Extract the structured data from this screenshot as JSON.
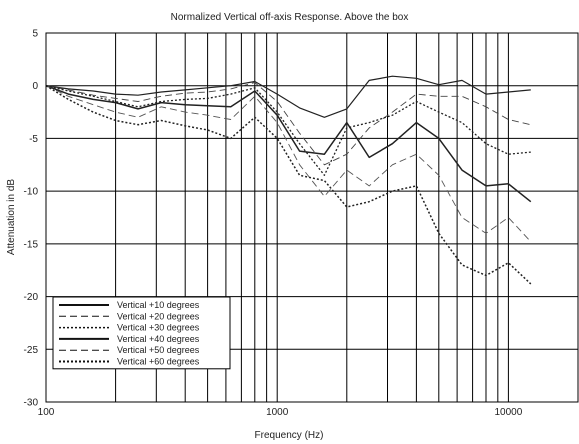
{
  "chart_data": {
    "type": "line",
    "title": "Normalized Vertical off-axis Response. Above the box",
    "xlabel": "Frequency (Hz)",
    "ylabel": "Attenuation in dB",
    "xscale": "log",
    "xlim": [
      100,
      20000
    ],
    "ylim": [
      -30,
      5
    ],
    "xticks": [
      100,
      1000,
      10000
    ],
    "xtick_labels": [
      "100",
      "1000",
      "10000"
    ],
    "yticks": [
      5,
      0,
      -5,
      -10,
      -15,
      -20,
      -25,
      -30
    ],
    "ytick_labels": [
      "5",
      "0",
      "-5",
      "-10",
      "-15",
      "-20",
      "-25",
      "-30"
    ],
    "grid": true,
    "legend_position": "bottom-left",
    "series": [
      {
        "name": "Vertical +10 degrees",
        "x": [
          100,
          125,
          160,
          200,
          250,
          315,
          400,
          500,
          630,
          800,
          1000,
          1250,
          1600,
          2000,
          2500,
          3150,
          4000,
          5000,
          6300,
          8000,
          10000,
          12500
        ],
        "y": [
          0,
          -0.3,
          -0.5,
          -0.8,
          -0.9,
          -0.6,
          -0.4,
          -0.2,
          0,
          0.4,
          -0.8,
          -2.1,
          -3,
          -2.2,
          0.5,
          0.9,
          0.7,
          0.1,
          0.5,
          -0.8,
          -0.6,
          -0.4
        ]
      },
      {
        "name": "Vertical +20 degrees",
        "x": [
          100,
          125,
          160,
          200,
          250,
          315,
          400,
          500,
          630,
          800,
          1000,
          1250,
          1600,
          2000,
          2500,
          3150,
          4000,
          5000,
          6300,
          8000,
          10000,
          12500
        ],
        "y": [
          0,
          -0.4,
          -0.9,
          -1.2,
          -1.5,
          -1.0,
          -0.7,
          -0.6,
          -0.3,
          0.3,
          -1.5,
          -4.5,
          -7.5,
          -6.5,
          -4,
          -2.5,
          -0.8,
          -1.0,
          -1.0,
          -2.0,
          -3.2,
          -3.7
        ]
      },
      {
        "name": "Vertical +30 degrees",
        "x": [
          100,
          125,
          160,
          200,
          250,
          315,
          400,
          500,
          630,
          800,
          1000,
          1250,
          1600,
          2000,
          2500,
          3150,
          4000,
          5000,
          6300,
          8000,
          10000,
          12500
        ],
        "y": [
          0,
          -0.5,
          -1.0,
          -1.5,
          -2.0,
          -1.5,
          -1.3,
          -1.2,
          -0.8,
          -0.2,
          -2.5,
          -5.5,
          -8.5,
          -4,
          -3.5,
          -2.8,
          -1.5,
          -2.5,
          -3.5,
          -5.5,
          -6.5,
          -6.3
        ]
      },
      {
        "name": "Vertical +40 degrees",
        "x": [
          100,
          125,
          160,
          200,
          250,
          315,
          400,
          500,
          630,
          800,
          1000,
          1250,
          1600,
          2000,
          2500,
          3150,
          4000,
          5000,
          6300,
          8000,
          10000,
          12500
        ],
        "y": [
          0,
          -0.8,
          -1.3,
          -1.6,
          -2.2,
          -1.6,
          -1.8,
          -1.9,
          -2.0,
          -0.5,
          -2.8,
          -6.2,
          -6.5,
          -3.5,
          -6.8,
          -5.5,
          -3.5,
          -5.0,
          -8.0,
          -9.5,
          -9.3,
          -11.0
        ]
      },
      {
        "name": "Vertical +50 degrees",
        "x": [
          100,
          125,
          160,
          200,
          250,
          315,
          400,
          500,
          630,
          800,
          1000,
          1250,
          1600,
          2000,
          2500,
          3150,
          4000,
          5000,
          6300,
          8000,
          10000,
          12500
        ],
        "y": [
          0,
          -1.0,
          -1.8,
          -2.5,
          -3.0,
          -2.0,
          -2.5,
          -2.8,
          -3.2,
          -1.0,
          -3.5,
          -7.5,
          -10.5,
          -8.0,
          -9.5,
          -7.5,
          -6.5,
          -8.5,
          -12.5,
          -14.0,
          -12.5,
          -14.8
        ]
      },
      {
        "name": "Vertical +60 degrees",
        "x": [
          100,
          125,
          160,
          200,
          250,
          315,
          400,
          500,
          630,
          800,
          1000,
          1250,
          1600,
          2000,
          2500,
          3150,
          4000,
          5000,
          6300,
          8000,
          10000,
          12500
        ],
        "y": [
          0,
          -1.3,
          -2.5,
          -3.3,
          -3.7,
          -3.3,
          -3.8,
          -4.2,
          -5.0,
          -3.0,
          -5.0,
          -8.5,
          -9.0,
          -11.5,
          -11.0,
          -10.0,
          -9.5,
          -14.0,
          -17.0,
          -18.0,
          -16.8,
          -18.8
        ]
      }
    ]
  },
  "style": {
    "series_colors": [
      "#222222",
      "#444444",
      "#222222",
      "#222222",
      "#555555",
      "#222222"
    ],
    "series_dash": [
      "none",
      "7,4",
      "2,2",
      "none",
      "7,4",
      "2,2"
    ],
    "series_width": [
      1.2,
      0.9,
      1.3,
      1.5,
      0.9,
      1.5
    ],
    "legend_dash": [
      "none",
      "7,4",
      "2,2",
      "none",
      "7,4",
      "2,2"
    ],
    "legend_width": [
      2,
      1,
      1.5,
      2,
      1,
      2
    ]
  }
}
